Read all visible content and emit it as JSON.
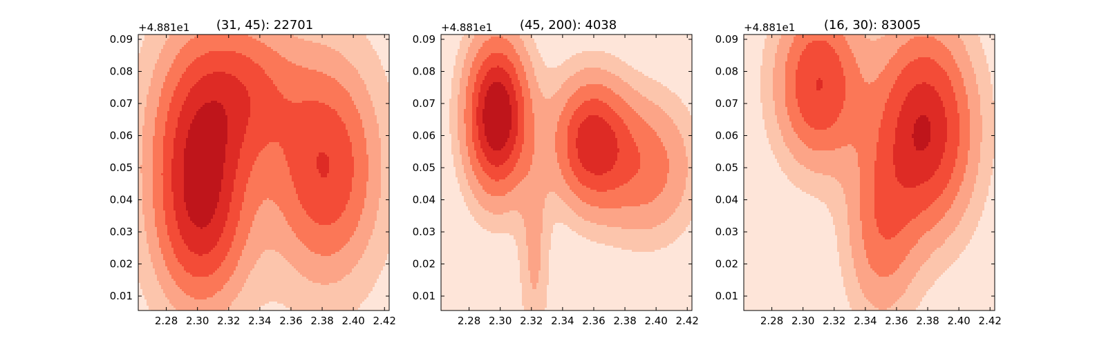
{
  "chart_data": [
    {
      "type": "contour",
      "title": "(31, 45): 22701",
      "y_offset_label": "+4.881e1",
      "x_ticks": [
        "2.28",
        "2.30",
        "2.32",
        "2.34",
        "2.36",
        "2.38",
        "2.40",
        "2.42"
      ],
      "y_ticks": [
        "0.01",
        "0.02",
        "0.03",
        "0.04",
        "0.05",
        "0.06",
        "0.07",
        "0.08",
        "0.09"
      ],
      "xlim": [
        2.262,
        2.423
      ],
      "ylim": [
        0.0055,
        0.0915
      ],
      "grid": false,
      "peaks": [
        {
          "x": 2.302,
          "y": 0.062,
          "sx": 0.032,
          "sy": 0.032,
          "a": 1.0
        },
        {
          "x": 2.302,
          "y": 0.031,
          "sx": 0.03,
          "sy": 0.028,
          "a": 0.85
        },
        {
          "x": 2.382,
          "y": 0.05,
          "sx": 0.034,
          "sy": 0.034,
          "a": 1.0
        },
        {
          "x": 2.335,
          "y": 0.075,
          "sx": 0.03,
          "sy": 0.022,
          "a": 0.55
        }
      ],
      "levels": [
        0.09,
        0.22,
        0.36,
        0.52,
        0.69,
        0.86
      ]
    },
    {
      "type": "contour",
      "title": "(45, 200): 4038",
      "y_offset_label": "+4.881e1",
      "x_ticks": [
        "2.28",
        "2.30",
        "2.32",
        "2.34",
        "2.36",
        "2.38",
        "2.40",
        "2.42"
      ],
      "y_ticks": [
        "0.01",
        "0.02",
        "0.03",
        "0.04",
        "0.05",
        "0.06",
        "0.07",
        "0.08",
        "0.09"
      ],
      "xlim": [
        2.262,
        2.423
      ],
      "ylim": [
        0.0055,
        0.0915
      ],
      "grid": false,
      "peaks": [
        {
          "x": 2.298,
          "y": 0.066,
          "sx": 0.02,
          "sy": 0.024,
          "a": 1.0
        },
        {
          "x": 2.358,
          "y": 0.058,
          "sx": 0.024,
          "sy": 0.02,
          "a": 0.72
        },
        {
          "x": 2.395,
          "y": 0.05,
          "sx": 0.03,
          "sy": 0.022,
          "a": 0.4
        },
        {
          "x": 2.322,
          "y": 0.022,
          "sx": 0.01,
          "sy": 0.03,
          "a": 0.22
        }
      ],
      "levels": [
        0.1,
        0.2,
        0.34,
        0.5,
        0.66,
        0.82
      ]
    },
    {
      "type": "contour",
      "title": "(16, 30): 83005",
      "y_offset_label": "+4.881e1",
      "x_ticks": [
        "2.28",
        "2.30",
        "2.32",
        "2.34",
        "2.36",
        "2.38",
        "2.40",
        "2.42"
      ],
      "y_ticks": [
        "0.01",
        "0.02",
        "0.03",
        "0.04",
        "0.05",
        "0.06",
        "0.07",
        "0.08",
        "0.09"
      ],
      "xlim": [
        2.262,
        2.423
      ],
      "ylim": [
        0.0055,
        0.0915
      ],
      "grid": false,
      "peaks": [
        {
          "x": 2.378,
          "y": 0.062,
          "sx": 0.03,
          "sy": 0.03,
          "a": 1.0
        },
        {
          "x": 2.31,
          "y": 0.076,
          "sx": 0.026,
          "sy": 0.024,
          "a": 0.8
        },
        {
          "x": 2.35,
          "y": 0.03,
          "sx": 0.022,
          "sy": 0.028,
          "a": 0.45
        }
      ],
      "levels": [
        0.1,
        0.22,
        0.38,
        0.56,
        0.78,
        0.97
      ]
    }
  ],
  "palette": [
    "#fee5d9",
    "#fcc5ac",
    "#fca487",
    "#fb7757",
    "#f34c37",
    "#de2b25",
    "#bf151b",
    "#8a0c16"
  ]
}
